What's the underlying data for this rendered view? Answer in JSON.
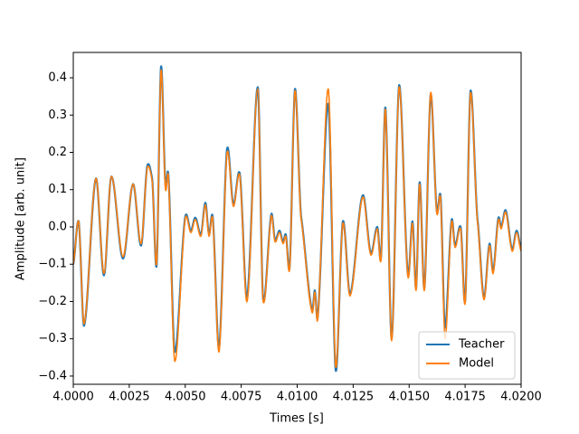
{
  "chart_data": {
    "type": "line",
    "xlabel": "Times [s]",
    "ylabel": "Amplitude [arb. unit]",
    "x": [
      4.0,
      4.00024,
      4.00048,
      4.00101,
      4.00137,
      4.0017,
      4.00222,
      4.00267,
      4.00303,
      4.00331,
      4.00352,
      4.00372,
      4.00392,
      4.00412,
      4.00424,
      4.00453,
      4.00501,
      4.00525,
      4.00545,
      4.0057,
      4.0059,
      4.00606,
      4.00622,
      4.00651,
      4.00687,
      4.00715,
      4.00743,
      4.00776,
      4.00824,
      4.00848,
      4.00885,
      4.00901,
      4.00921,
      4.00937,
      4.00949,
      4.00966,
      4.0099,
      4.01018,
      4.01067,
      4.01079,
      4.01091,
      4.01139,
      4.01172,
      4.01204,
      4.01236,
      4.01293,
      4.01329,
      4.01358,
      4.01374,
      4.01394,
      4.01422,
      4.01455,
      4.01495,
      4.01515,
      4.01531,
      4.01547,
      4.01568,
      4.01596,
      4.01624,
      4.0164,
      4.0166,
      4.0169,
      4.01705,
      4.0173,
      4.0175,
      4.01774,
      4.01806,
      4.01834,
      4.01859,
      4.01875,
      4.01899,
      4.01911,
      4.01931,
      4.0196,
      4.0198,
      4.02
    ],
    "series": [
      {
        "name": "Teacher",
        "color": "#1f77b4",
        "values": [
          -0.1,
          0.015,
          -0.265,
          0.13,
          -0.13,
          0.135,
          -0.085,
          0.115,
          -0.05,
          0.165,
          0.13,
          -0.105,
          0.43,
          0.11,
          0.145,
          -0.335,
          0.03,
          -0.01,
          0.025,
          -0.02,
          0.065,
          -0.02,
          0.03,
          -0.325,
          0.21,
          0.06,
          0.145,
          -0.19,
          0.375,
          -0.195,
          0.035,
          -0.035,
          -0.01,
          -0.04,
          -0.02,
          -0.11,
          0.37,
          0.025,
          -0.225,
          -0.17,
          -0.245,
          0.33,
          -0.385,
          0.015,
          -0.18,
          0.085,
          -0.07,
          0.0,
          -0.085,
          0.32,
          -0.3,
          0.38,
          -0.13,
          0.015,
          -0.165,
          0.12,
          -0.165,
          0.355,
          0.04,
          0.085,
          -0.27,
          0.02,
          -0.05,
          0.0,
          -0.2,
          0.365,
          0.015,
          -0.19,
          -0.045,
          -0.12,
          0.025,
          0.0,
          0.045,
          -0.06,
          -0.01,
          -0.06
        ]
      },
      {
        "name": "Model",
        "color": "#ff7f0e",
        "values": [
          -0.1,
          0.015,
          -0.26,
          0.13,
          -0.125,
          0.135,
          -0.08,
          0.115,
          -0.045,
          0.16,
          0.125,
          -0.1,
          0.42,
          0.1,
          0.14,
          -0.36,
          0.025,
          -0.015,
          0.02,
          -0.025,
          0.06,
          -0.025,
          0.025,
          -0.335,
          0.2,
          0.055,
          0.14,
          -0.2,
          0.37,
          -0.2,
          0.03,
          -0.04,
          -0.015,
          -0.045,
          -0.025,
          -0.115,
          0.365,
          0.02,
          -0.23,
          -0.175,
          -0.25,
          0.37,
          -0.375,
          0.01,
          -0.185,
          0.08,
          -0.075,
          -0.005,
          -0.09,
          0.315,
          -0.305,
          0.375,
          -0.135,
          0.01,
          -0.17,
          0.115,
          -0.17,
          0.36,
          0.035,
          0.08,
          -0.3,
          0.015,
          -0.055,
          -0.005,
          -0.205,
          0.36,
          0.01,
          -0.195,
          -0.05,
          -0.125,
          0.02,
          -0.005,
          0.04,
          -0.065,
          -0.015,
          -0.065
        ]
      }
    ],
    "xlim": [
      4.0,
      4.02
    ],
    "xticks": [
      {
        "value": 4.0,
        "label": "4.0000"
      },
      {
        "value": 4.0025,
        "label": "4.0025"
      },
      {
        "value": 4.005,
        "label": "4.0050"
      },
      {
        "value": 4.0075,
        "label": "4.0075"
      },
      {
        "value": 4.01,
        "label": "4.0100"
      },
      {
        "value": 4.0125,
        "label": "4.0125"
      },
      {
        "value": 4.015,
        "label": "4.0150"
      },
      {
        "value": 4.0175,
        "label": "4.0175"
      },
      {
        "value": 4.02,
        "label": "4.0200"
      }
    ],
    "ylim": [
      -0.422,
      0.468
    ],
    "yticks": [
      {
        "value": -0.4,
        "label": "−0.4"
      },
      {
        "value": -0.3,
        "label": "−0.3"
      },
      {
        "value": -0.2,
        "label": "−0.2"
      },
      {
        "value": -0.1,
        "label": "−0.1"
      },
      {
        "value": 0,
        "label": "0.0"
      },
      0.1,
      0.2,
      0.3,
      0.4
    ],
    "legend": "lower right"
  }
}
